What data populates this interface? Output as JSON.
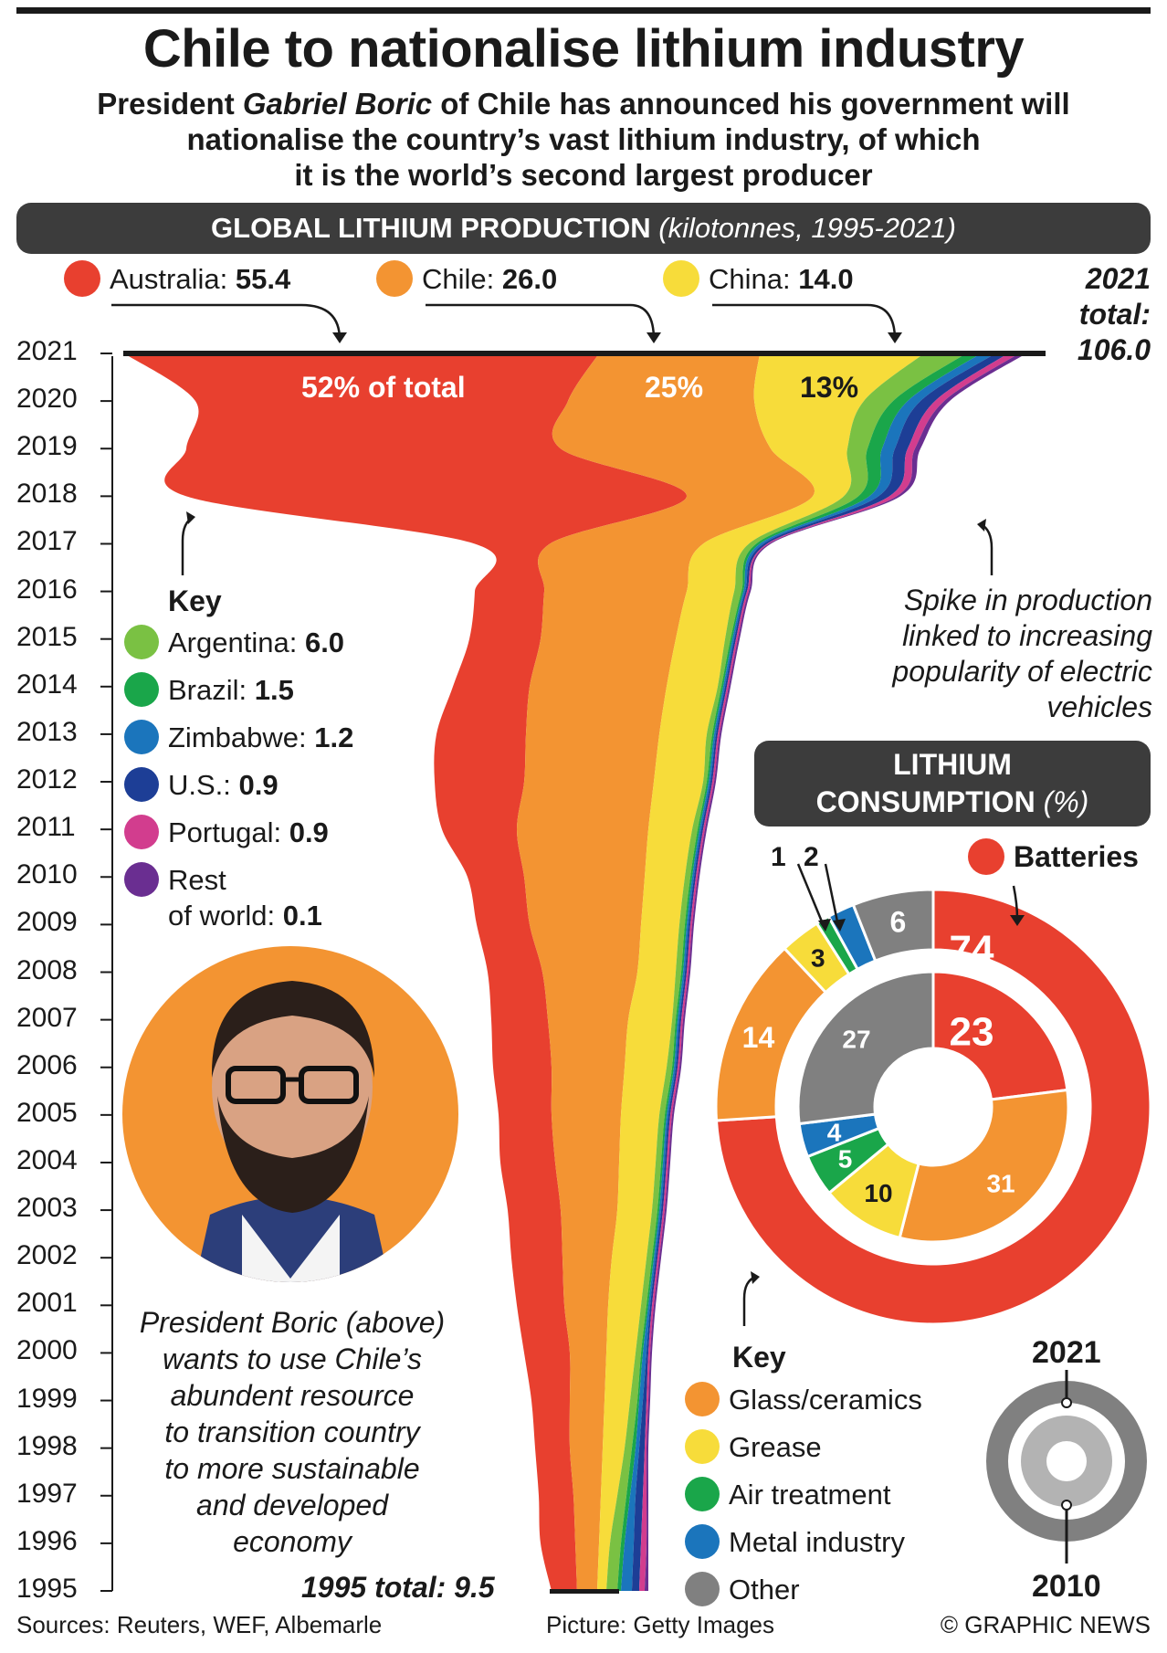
{
  "header": {
    "title": "Chile to nationalise lithium industry",
    "subtitle_line1": "President ",
    "subtitle_name": "Gabriel Boric",
    "subtitle_line1b": " of Chile has announced his government will",
    "subtitle_line2": "nationalise the country’s vast lithium industry, of which",
    "subtitle_line3": "it is the world’s second largest producer"
  },
  "production_banner": {
    "title": "GLOBAL LITHIUM PRODUCTION",
    "unit": "(kilotonnes, 1995-2021)"
  },
  "top_legend": [
    {
      "name": "Australia:",
      "value": "55.4",
      "color": "#e8402f"
    },
    {
      "name": "Chile:",
      "value": "26.0",
      "color": "#f39432"
    },
    {
      "name": "China:",
      "value": "14.0",
      "color": "#f7dc3a"
    }
  ],
  "total_2021": {
    "line1": "2021",
    "line2": "total:",
    "line3": "106.0"
  },
  "total_1995": "1995 total: 9.5",
  "share_labels": [
    "52% of total",
    "25%",
    "13%"
  ],
  "production_key": {
    "heading": "Key",
    "items": [
      {
        "name": "Argentina:",
        "value": "6.0",
        "color": "#7ac143"
      },
      {
        "name": "Brazil:",
        "value": "1.5",
        "color": "#1aa64a"
      },
      {
        "name": "Zimbabwe:",
        "value": "1.2",
        "color": "#1b75bc"
      },
      {
        "name": "U.S.:",
        "value": "0.9",
        "color": "#1d3e96"
      },
      {
        "name": "Portugal:",
        "value": "0.9",
        "color": "#d23d8e"
      },
      {
        "name": "Rest",
        "name2": "of world:",
        "value": "0.1",
        "color": "#6a2e91"
      }
    ]
  },
  "spike_note": [
    "Spike in production",
    "linked to increasing",
    "popularity of electric",
    "vehicles"
  ],
  "boric_note": [
    "President Boric (above)",
    "wants to use Chile’s",
    "abundent resource",
    "to transition country",
    "to more sustainable",
    "and developed",
    "economy"
  ],
  "consumption_banner": {
    "line1": "LITHIUM",
    "line2": "CONSUMPTION",
    "unit": "(%)"
  },
  "consumption_legend_title": "Batteries",
  "consumption_key": {
    "heading": "Key",
    "items": [
      {
        "name": "Glass/ceramics",
        "color": "#f39432"
      },
      {
        "name": "Grease",
        "color": "#f7dc3a"
      },
      {
        "name": "Air treatment",
        "color": "#1aa64a"
      },
      {
        "name": "Metal industry",
        "color": "#1b75bc"
      },
      {
        "name": "Other",
        "color": "#808080"
      }
    ]
  },
  "ring_legend": {
    "outer": "2021",
    "inner": "2010"
  },
  "footer": {
    "sources": "Sources: Reuters, WEF, Albemarle",
    "picture": "Picture: Getty Images",
    "copyright": "© GRAPHIC NEWS"
  },
  "chart_data": [
    {
      "type": "area",
      "title": "GLOBAL LITHIUM PRODUCTION",
      "unit": "kilotonnes",
      "x": [
        1995,
        1996,
        1997,
        1998,
        1999,
        2000,
        2001,
        2002,
        2003,
        2004,
        2005,
        2006,
        2007,
        2008,
        2009,
        2010,
        2011,
        2012,
        2013,
        2014,
        2015,
        2016,
        2017,
        2018,
        2019,
        2020,
        2021
      ],
      "totals": {
        "1995": 9.5,
        "2021": 106.0
      },
      "series_2021": [
        {
          "name": "Australia",
          "value": 55.4
        },
        {
          "name": "Chile",
          "value": 26.0
        },
        {
          "name": "China",
          "value": 14.0
        },
        {
          "name": "Argentina",
          "value": 6.0
        },
        {
          "name": "Brazil",
          "value": 1.5
        },
        {
          "name": "Zimbabwe",
          "value": 1.2
        },
        {
          "name": "U.S.",
          "value": 0.9
        },
        {
          "name": "Portugal",
          "value": 0.9
        },
        {
          "name": "Rest of world",
          "value": 0.1
        }
      ],
      "shares_2021": {
        "Australia": 52,
        "Chile": 25,
        "China": 13
      }
    },
    {
      "type": "pie",
      "title": "LITHIUM CONSUMPTION (%)",
      "rings": [
        {
          "name": "2021",
          "categories": [
            "Batteries",
            "Glass/ceramics",
            "Grease",
            "Air treatment",
            "Metal industry",
            "Other"
          ],
          "values": [
            74,
            14,
            3,
            1,
            2,
            6
          ]
        },
        {
          "name": "2010",
          "categories": [
            "Batteries",
            "Glass/ceramics",
            "Grease",
            "Air treatment",
            "Metal industry",
            "Other"
          ],
          "values": [
            23,
            31,
            10,
            5,
            4,
            27
          ]
        }
      ]
    }
  ]
}
